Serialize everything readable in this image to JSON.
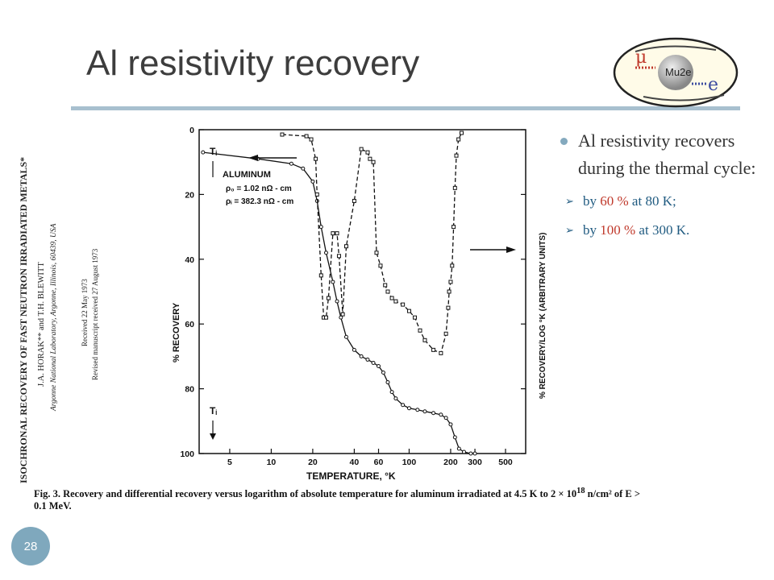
{
  "slide": {
    "title": "Al resistivity recovery",
    "page_number": "28",
    "logo_text": "Mu2e",
    "logo_mu": "μ",
    "logo_e": "e"
  },
  "bullets": {
    "main": "Al resistivity recovers during the thermal cycle:",
    "sub": [
      {
        "prefix": "by ",
        "highlight": "60 %",
        "suffix": " at 80 K;"
      },
      {
        "prefix": "by ",
        "highlight": "100 %",
        "suffix": " at 300 K."
      }
    ]
  },
  "paper": {
    "title": "ISOCHRONAL RECOVERY OF FAST NEUTRON IRRADIATED METALS*",
    "authors": "J.A. HORAK** and T.H. BLEWITT",
    "affiliation": "Argonne National Laboratory, Argonne, Illinois, 60439, USA",
    "received": "Received 22 May 1973",
    "revised": "Revised manuscript received 27 August 1973",
    "caption_bold": "Fig. 3.",
    "caption": "Recovery and differential recovery versus logarithm of absolute temperature for aluminum irradiated at 4.5 K to 2 × 10",
    "caption_sup": "18",
    "caption_end": "n/cm² of E > 0.1 MeV."
  },
  "chart_data": {
    "type": "line",
    "xscale": "log",
    "xlabel": "TEMPERATURE, °K",
    "ylabel_left": "% RECOVERY",
    "ylabel_right": "% RECOVERY/LOG °K (ARBITRARY UNITS)",
    "x_ticks": [
      5,
      10,
      20,
      40,
      60,
      100,
      200,
      300,
      500
    ],
    "y_ticks": [
      0,
      20,
      40,
      60,
      80,
      100
    ],
    "ylim": [
      0,
      100
    ],
    "xlim": [
      3,
      700
    ],
    "annotations": {
      "material": "ALUMINUM",
      "rho0": "ρ₀ = 1.02 nΩ - cm",
      "rhoi": "ρᵢ = 382.3 nΩ - cm",
      "ti": "Tᵢ"
    },
    "series": [
      {
        "style": "solid",
        "x": [
          3.2,
          8,
          14,
          17,
          20,
          21.5,
          23,
          25,
          28,
          30,
          32,
          35,
          40,
          45,
          50,
          55,
          60,
          65,
          70,
          75,
          80,
          90,
          100,
          115,
          130,
          150,
          170,
          185,
          200,
          215,
          230,
          250,
          280,
          300
        ],
        "y": [
          7,
          9,
          10.5,
          12,
          16,
          22,
          30,
          38,
          47,
          53,
          58,
          64,
          68,
          70,
          71,
          72,
          73,
          75,
          78,
          81,
          83,
          85,
          86,
          86.5,
          87,
          87.5,
          88,
          89,
          91,
          95,
          98.5,
          99.5,
          100,
          100
        ]
      },
      {
        "style": "dashed",
        "x": [
          12,
          18,
          19.5,
          21,
          21.5,
          23,
          24,
          25,
          26,
          28,
          30,
          31,
          33,
          35,
          40,
          45,
          50,
          52,
          55,
          58,
          62,
          67,
          70,
          75,
          80,
          90,
          100,
          110,
          120,
          130,
          150,
          170,
          185,
          192,
          195,
          200,
          205,
          210,
          215,
          220,
          228,
          240
        ],
        "y": [
          1.5,
          2,
          3,
          9,
          20,
          45,
          58,
          58,
          52,
          32,
          32,
          39,
          57,
          36,
          22,
          6,
          7,
          9,
          10,
          38,
          42,
          48,
          50,
          52,
          53,
          54,
          56,
          58,
          62,
          65,
          68,
          69,
          63,
          55,
          50,
          47,
          42,
          30,
          18,
          8,
          3,
          1
        ]
      }
    ]
  }
}
